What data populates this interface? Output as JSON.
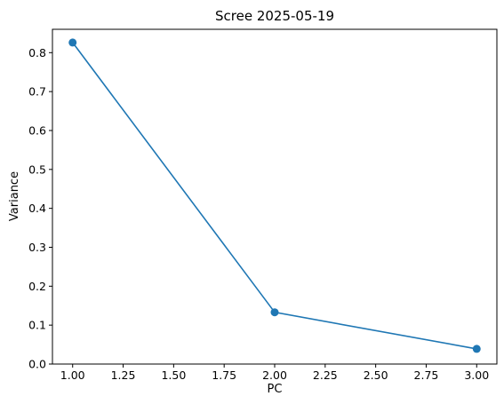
{
  "chart_data": {
    "type": "line",
    "title": "Scree 2025-05-19",
    "xlabel": "PC",
    "ylabel": "Variance",
    "x": [
      1,
      2,
      3
    ],
    "series": [
      {
        "values": [
          0.826,
          0.133,
          0.039
        ],
        "color": "#1f77b4",
        "marker": "circle"
      }
    ],
    "xlim": [
      0.9,
      3.1
    ],
    "ylim": [
      0.0,
      0.86
    ],
    "xticks": [
      1.0,
      1.25,
      1.5,
      1.75,
      2.0,
      2.25,
      2.5,
      2.75,
      3.0
    ],
    "xtick_labels": [
      "1.00",
      "1.25",
      "1.50",
      "1.75",
      "2.00",
      "2.25",
      "2.50",
      "2.75",
      "3.00"
    ],
    "yticks": [
      0.0,
      0.1,
      0.2,
      0.3,
      0.4,
      0.5,
      0.6,
      0.7,
      0.8
    ],
    "ytick_labels": [
      "0.0",
      "0.1",
      "0.2",
      "0.3",
      "0.4",
      "0.5",
      "0.6",
      "0.7",
      "0.8"
    ],
    "grid": false,
    "legend": "none"
  }
}
